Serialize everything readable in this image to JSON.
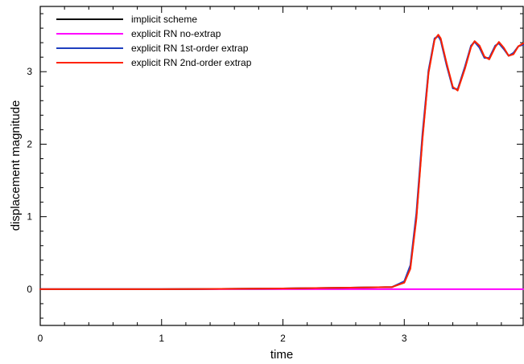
{
  "chart_data": {
    "type": "line",
    "title": "",
    "xlabel": "time",
    "ylabel": "displacement magnitude",
    "xlim": [
      0,
      3.98
    ],
    "ylim": [
      -0.5,
      3.9
    ],
    "x_ticks": [
      0,
      1,
      2,
      3
    ],
    "x_tick_labels": [
      "0",
      "1",
      "2",
      "3"
    ],
    "y_ticks": [
      0,
      1,
      2,
      3
    ],
    "y_tick_labels": [
      "0",
      "1",
      "2",
      "3"
    ],
    "grid": false,
    "legend_position": "top-left",
    "series": [
      {
        "name": "implicit scheme",
        "color": "#000000",
        "x": [
          0,
          1,
          2,
          2.5,
          2.9,
          3.0,
          3.05,
          3.1,
          3.15,
          3.2,
          3.25,
          3.28,
          3.3,
          3.35,
          3.4,
          3.44,
          3.5,
          3.55,
          3.58,
          3.62,
          3.66,
          3.7,
          3.75,
          3.78,
          3.82,
          3.86,
          3.9,
          3.94,
          3.98
        ],
        "y": [
          0,
          0,
          0.01,
          0.02,
          0.03,
          0.1,
          0.3,
          1.0,
          2.1,
          3.0,
          3.45,
          3.5,
          3.45,
          3.1,
          2.78,
          2.75,
          3.05,
          3.35,
          3.42,
          3.35,
          3.2,
          3.18,
          3.35,
          3.4,
          3.32,
          3.22,
          3.25,
          3.35,
          3.38
        ]
      },
      {
        "name": "explicit RN no-extrap",
        "color": "#ff00ff",
        "x": [
          0,
          3.98
        ],
        "y": [
          0,
          0
        ]
      },
      {
        "name": "explicit RN 1st-order extrap",
        "color": "#1f3fbf",
        "x": [
          0,
          1,
          2,
          2.5,
          2.9,
          3.0,
          3.05,
          3.1,
          3.15,
          3.2,
          3.25,
          3.28,
          3.3,
          3.35,
          3.4,
          3.44,
          3.5,
          3.55,
          3.58,
          3.62,
          3.66,
          3.7,
          3.75,
          3.78,
          3.82,
          3.86,
          3.9,
          3.94,
          3.98
        ],
        "y": [
          0,
          0,
          0.01,
          0.02,
          0.03,
          0.11,
          0.33,
          1.05,
          2.15,
          3.02,
          3.46,
          3.49,
          3.43,
          3.08,
          2.77,
          2.76,
          3.07,
          3.36,
          3.41,
          3.33,
          3.19,
          3.19,
          3.36,
          3.39,
          3.31,
          3.22,
          3.26,
          3.35,
          3.37
        ]
      },
      {
        "name": "explicit RN 2nd-order extrap",
        "color": "#ff2200",
        "x": [
          0,
          1,
          2,
          2.5,
          2.9,
          3.0,
          3.05,
          3.1,
          3.15,
          3.2,
          3.25,
          3.28,
          3.3,
          3.35,
          3.4,
          3.44,
          3.5,
          3.55,
          3.58,
          3.62,
          3.66,
          3.7,
          3.75,
          3.78,
          3.82,
          3.86,
          3.9,
          3.94,
          3.98
        ],
        "y": [
          0,
          0,
          0.01,
          0.02,
          0.03,
          0.09,
          0.28,
          0.97,
          2.07,
          2.98,
          3.44,
          3.51,
          3.46,
          3.11,
          2.79,
          2.74,
          3.04,
          3.34,
          3.42,
          3.36,
          3.21,
          3.17,
          3.34,
          3.41,
          3.33,
          3.22,
          3.24,
          3.35,
          3.39
        ]
      }
    ]
  }
}
